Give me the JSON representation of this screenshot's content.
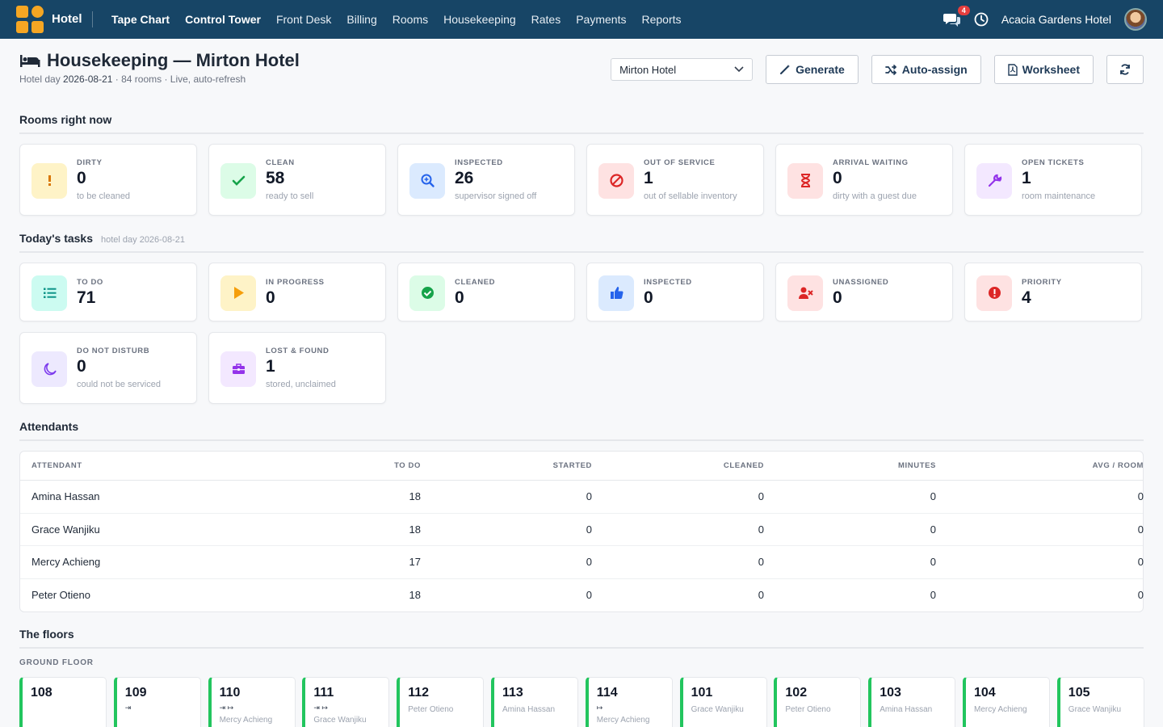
{
  "nav": {
    "brand": "Hotel",
    "items": [
      {
        "label": "Tape Chart",
        "strong": true
      },
      {
        "label": "Control Tower",
        "strong": true
      },
      {
        "label": "Front Desk",
        "strong": false
      },
      {
        "label": "Billing",
        "strong": false
      },
      {
        "label": "Rooms",
        "strong": false
      },
      {
        "label": "Housekeeping",
        "strong": false
      },
      {
        "label": "Rates",
        "strong": false
      },
      {
        "label": "Payments",
        "strong": false
      },
      {
        "label": "Reports",
        "strong": false
      }
    ],
    "chat_badge": "4",
    "hotel_name": "Acacia Gardens Hotel"
  },
  "header": {
    "title": "Housekeeping — Mirton Hotel",
    "sub_prefix": "Hotel day ",
    "sub_date": "2026-08-21",
    "sub_suffix": " · 84 rooms · Live, auto-refresh",
    "hotel_select": "Mirton Hotel",
    "generate_label": "Generate",
    "autoassign_label": "Auto-assign",
    "worksheet_label": "Worksheet"
  },
  "rooms_now": {
    "title": "Rooms right now",
    "cards": [
      {
        "label": "DIRTY",
        "value": "0",
        "note": "to be cleaned",
        "icon": "exclamation-icon",
        "bg": "#fef3c7",
        "fg": "#d97706"
      },
      {
        "label": "CLEAN",
        "value": "58",
        "note": "ready to sell",
        "icon": "check-icon",
        "bg": "#dcfce7",
        "fg": "#16a34a"
      },
      {
        "label": "INSPECTED",
        "value": "26",
        "note": "supervisor signed off",
        "icon": "magnifier-icon",
        "bg": "#dbeafe",
        "fg": "#2563eb"
      },
      {
        "label": "OUT OF SERVICE",
        "value": "1",
        "note": "out of sellable inventory",
        "icon": "ban-icon",
        "bg": "#fee2e2",
        "fg": "#dc2626"
      },
      {
        "label": "ARRIVAL WAITING",
        "value": "0",
        "note": "dirty with a guest due",
        "icon": "hourglass-icon",
        "bg": "#fee2e2",
        "fg": "#dc2626"
      },
      {
        "label": "OPEN TICKETS",
        "value": "1",
        "note": "room maintenance",
        "icon": "wrench-icon",
        "bg": "#f3e8ff",
        "fg": "#9333ea"
      }
    ]
  },
  "tasks": {
    "title": "Today's tasks",
    "subtitle": "hotel day 2026-08-21",
    "cards": [
      {
        "label": "TO DO",
        "value": "71",
        "note": "",
        "icon": "list-icon",
        "bg": "#ccfbf1",
        "fg": "#0d9488"
      },
      {
        "label": "IN PROGRESS",
        "value": "0",
        "note": "",
        "icon": "play-icon",
        "bg": "#fef3c7",
        "fg": "#f59e0b"
      },
      {
        "label": "CLEANED",
        "value": "0",
        "note": "",
        "icon": "check-circle-icon",
        "bg": "#dcfce7",
        "fg": "#16a34a"
      },
      {
        "label": "INSPECTED",
        "value": "0",
        "note": "",
        "icon": "thumbs-up-icon",
        "bg": "#dbeafe",
        "fg": "#2563eb"
      },
      {
        "label": "UNASSIGNED",
        "value": "0",
        "note": "",
        "icon": "user-x-icon",
        "bg": "#fee2e2",
        "fg": "#dc2626"
      },
      {
        "label": "PRIORITY",
        "value": "4",
        "note": "",
        "icon": "alert-circle-icon",
        "bg": "#fee2e2",
        "fg": "#dc2626"
      },
      {
        "label": "DO NOT DISTURB",
        "value": "0",
        "note": "could not be serviced",
        "icon": "moon-icon",
        "bg": "#ede9fe",
        "fg": "#7c3aed"
      },
      {
        "label": "LOST & FOUND",
        "value": "1",
        "note": "stored, unclaimed",
        "icon": "briefcase-icon",
        "bg": "#f3e8ff",
        "fg": "#9333ea"
      }
    ]
  },
  "attendants": {
    "title": "Attendants",
    "columns": [
      "ATTENDANT",
      "TO DO",
      "STARTED",
      "CLEANED",
      "MINUTES",
      "AVG / ROOM"
    ],
    "rows": [
      [
        "Amina Hassan",
        "18",
        "0",
        "0",
        "0",
        "0"
      ],
      [
        "Grace Wanjiku",
        "18",
        "0",
        "0",
        "0",
        "0"
      ],
      [
        "Mercy Achieng",
        "17",
        "0",
        "0",
        "0",
        "0"
      ],
      [
        "Peter Otieno",
        "18",
        "0",
        "0",
        "0",
        "0"
      ]
    ]
  },
  "floors": {
    "title": "The floors",
    "floor_label": "GROUND FLOOR",
    "rooms": [
      {
        "num": "108",
        "flags": "",
        "att": ""
      },
      {
        "num": "109",
        "flags": "⇥",
        "att": ""
      },
      {
        "num": "110",
        "flags": "⇥ ↦",
        "att": "Mercy Achieng"
      },
      {
        "num": "111",
        "flags": "⇥ ↦",
        "att": "Grace Wanjiku"
      },
      {
        "num": "112",
        "flags": "",
        "att": "Peter Otieno"
      },
      {
        "num": "113",
        "flags": "",
        "att": "Amina Hassan"
      },
      {
        "num": "114",
        "flags": "↦",
        "att": "Mercy Achieng"
      },
      {
        "num": "101",
        "flags": "",
        "att": "Grace Wanjiku"
      },
      {
        "num": "102",
        "flags": "",
        "att": "Peter Otieno"
      },
      {
        "num": "103",
        "flags": "",
        "att": "Amina Hassan"
      },
      {
        "num": "104",
        "flags": "",
        "att": "Mercy Achieng"
      },
      {
        "num": "105",
        "flags": "",
        "att": "Grace Wanjiku"
      }
    ]
  }
}
